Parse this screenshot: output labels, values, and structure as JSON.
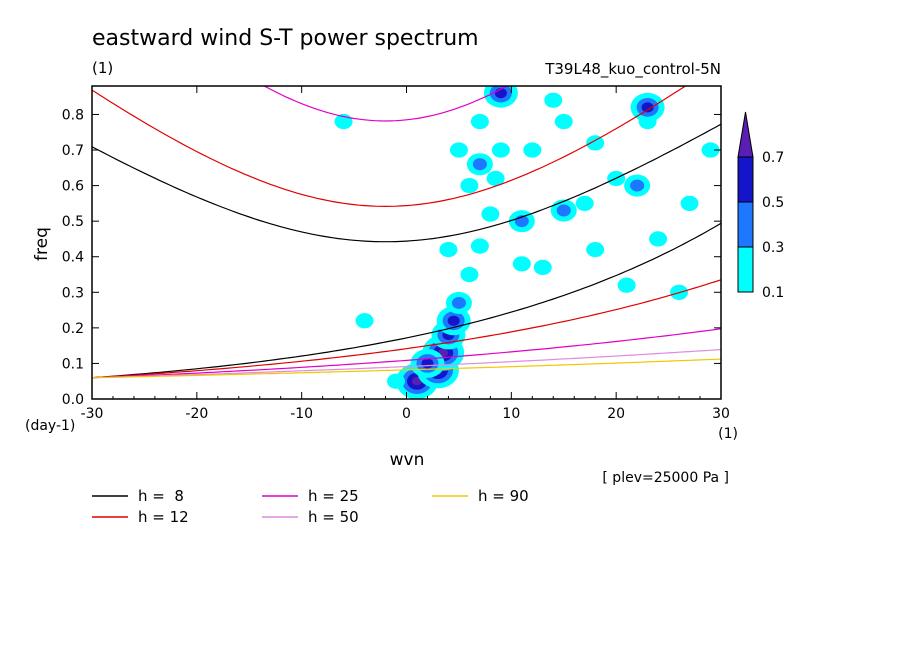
{
  "chart_data": {
    "type": "heatmap",
    "title": "eastward wind S-T power spectrum",
    "subtitle_left": "(1)",
    "subtitle_right": "T39L48_kuo_control-5N",
    "xlabel": "wvn",
    "ylabel": "freq",
    "x_unit": "(1)",
    "y_unit": "(day-1)",
    "xlim": [
      -30,
      30
    ],
    "ylim": [
      0,
      0.88
    ],
    "xticks": [
      "-30",
      "-20",
      "-10",
      "0",
      "10",
      "20",
      "30"
    ],
    "yticks": [
      "0.0",
      "0.1",
      "0.2",
      "0.3",
      "0.4",
      "0.5",
      "0.6",
      "0.7",
      "0.8"
    ],
    "annotation": "[ plev=25000 Pa ]",
    "colorbar": {
      "levels": [
        "0.1",
        "0.3",
        "0.5",
        "0.7"
      ],
      "colors": [
        "#00ffff",
        "#1e78ff",
        "#1414c8",
        "#5a1eb4"
      ]
    },
    "dispersion_curves": [
      {
        "label": "h =  8",
        "h": 8,
        "color": "#000000"
      },
      {
        "label": "h = 12",
        "h": 12,
        "color": "#e00000"
      },
      {
        "label": "h = 25",
        "h": 25,
        "color": "#e000c8"
      },
      {
        "label": "h = 50",
        "h": 50,
        "color": "#dc8cdc"
      },
      {
        "label": "h = 90",
        "h": 90,
        "color": "#f0c800"
      }
    ],
    "power_blobs": [
      {
        "k": 1,
        "f": 0.05,
        "level": 3
      },
      {
        "k": 3,
        "f": 0.08,
        "level": 3
      },
      {
        "k": 3.5,
        "f": 0.13,
        "level": 3
      },
      {
        "k": 4,
        "f": 0.18,
        "level": 2
      },
      {
        "k": 4.5,
        "f": 0.22,
        "level": 2
      },
      {
        "k": 2,
        "f": 0.1,
        "level": 2
      },
      {
        "k": 5,
        "f": 0.27,
        "level": 1
      },
      {
        "k": 6,
        "f": 0.35,
        "level": 0
      },
      {
        "k": 7,
        "f": 0.43,
        "level": 0
      },
      {
        "k": 8,
        "f": 0.52,
        "level": 0
      },
      {
        "k": 8.5,
        "f": 0.62,
        "level": 0
      },
      {
        "k": 9,
        "f": 0.7,
        "level": 0
      },
      {
        "k": 12,
        "f": 0.7,
        "level": 0
      },
      {
        "k": 15,
        "f": 0.78,
        "level": 0
      },
      {
        "k": 20,
        "f": 0.62,
        "level": 0
      },
      {
        "k": 23,
        "f": 0.78,
        "level": 0
      },
      {
        "k": 17,
        "f": 0.55,
        "level": 0
      },
      {
        "k": 11,
        "f": 0.5,
        "level": 1
      },
      {
        "k": 9,
        "f": 0.86,
        "level": 2
      },
      {
        "k": 23,
        "f": 0.82,
        "level": 2
      },
      {
        "k": 22,
        "f": 0.6,
        "level": 1
      },
      {
        "k": 15,
        "f": 0.53,
        "level": 1
      },
      {
        "k": 13,
        "f": 0.37,
        "level": 0
      },
      {
        "k": 11,
        "f": 0.38,
        "level": 0
      },
      {
        "k": 18,
        "f": 0.42,
        "level": 0
      },
      {
        "k": 24,
        "f": 0.45,
        "level": 0
      },
      {
        "k": 4,
        "f": 0.42,
        "level": 0
      },
      {
        "k": 6,
        "f": 0.6,
        "level": 0
      },
      {
        "k": 5,
        "f": 0.7,
        "level": 0
      },
      {
        "k": 18,
        "f": 0.72,
        "level": 0
      },
      {
        "k": 27,
        "f": 0.55,
        "level": 0
      },
      {
        "k": 29,
        "f": 0.7,
        "level": 0
      },
      {
        "k": 14,
        "f": 0.84,
        "level": 0
      },
      {
        "k": 7,
        "f": 0.78,
        "level": 0
      },
      {
        "k": -6,
        "f": 0.78,
        "level": 0
      },
      {
        "k": -4,
        "f": 0.22,
        "level": 0
      },
      {
        "k": -1,
        "f": 0.05,
        "level": 0
      },
      {
        "k": 7,
        "f": 0.66,
        "level": 1
      },
      {
        "k": 21,
        "f": 0.32,
        "level": 0
      },
      {
        "k": 26,
        "f": 0.3,
        "level": 0
      }
    ]
  }
}
